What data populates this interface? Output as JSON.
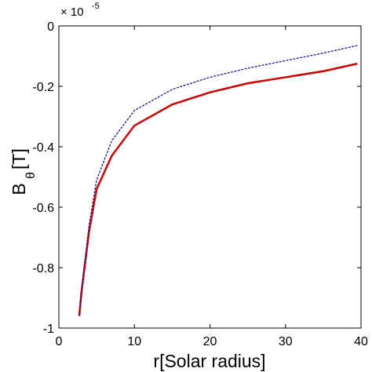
{
  "chart_data": {
    "type": "line",
    "x_label": "r[Solar radius]",
    "y_label": "B",
    "y_label_subscript": "θ",
    "y_label_suffix": "[T]",
    "y_multiplier": "× 10",
    "y_multiplier_exponent": "-5",
    "x": [
      2.7,
      3,
      4,
      5,
      7,
      10,
      15,
      20,
      25,
      30,
      35,
      39.5
    ],
    "series": [
      {
        "color": "#cc0000",
        "style": "solid",
        "values": [
          -0.96,
          -0.88,
          -0.68,
          -0.54,
          -0.43,
          -0.33,
          -0.26,
          -0.22,
          -0.19,
          -0.17,
          -0.15,
          -0.125
        ]
      },
      {
        "color": "#1a1aa0",
        "style": "dashed",
        "values": [
          -0.96,
          -0.87,
          -0.66,
          -0.51,
          -0.38,
          -0.28,
          -0.21,
          -0.17,
          -0.14,
          -0.115,
          -0.09,
          -0.065
        ]
      }
    ],
    "xlim": [
      0,
      40
    ],
    "ylim": [
      -1,
      0
    ],
    "xticks": [
      0,
      10,
      20,
      30,
      40
    ],
    "yticks": [
      0,
      -0.2,
      -0.4,
      -0.6,
      -0.8,
      -1
    ],
    "grid": false
  }
}
